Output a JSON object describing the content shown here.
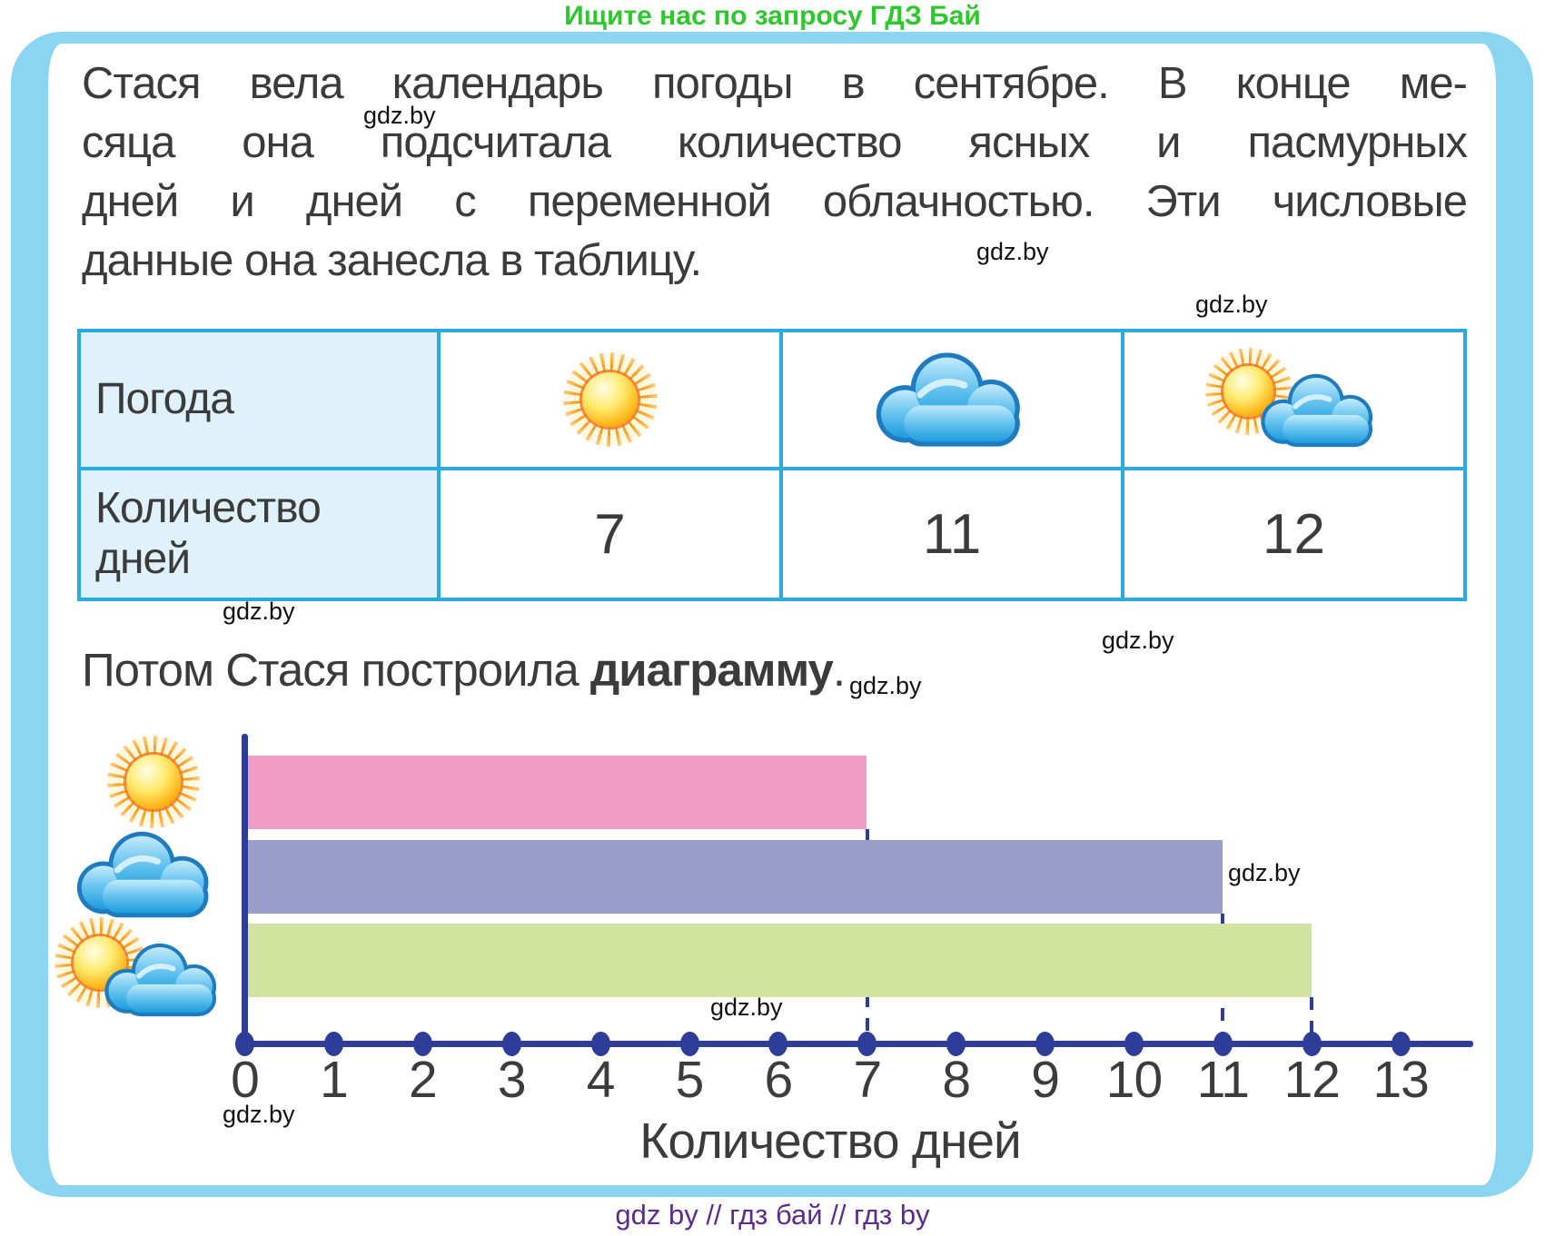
{
  "header": {
    "promo": "Ищите нас по запросу ГДЗ Бай"
  },
  "problem": {
    "lines": [
      "Стася вела календарь погоды в сентябре. В конце ме-",
      "сяца она подсчитала количество ясных и пасмурных",
      "дней и дней с переменной облачностью. Эти числовые",
      "данные она занесла в таблицу."
    ]
  },
  "table": {
    "row1_header": "Погода",
    "row2_header": "Количество дней",
    "columns": [
      {
        "icon": "sunny-icon",
        "label": "ясно",
        "value": "7"
      },
      {
        "icon": "cloudy-icon",
        "label": "пасмурно",
        "value": "11"
      },
      {
        "icon": "partly-cloudy-icon",
        "label": "переменная облачность",
        "value": "12"
      }
    ]
  },
  "subtitle": {
    "prefix": "Потом Стася построила ",
    "bold": "диаграмму",
    "suffix": "."
  },
  "chart_data": {
    "type": "bar",
    "orientation": "horizontal",
    "title": "",
    "categories": [
      "ясные дни (солнце)",
      "пасмурные дни (облако)",
      "переменная облачность (солнце и облако)"
    ],
    "category_icons": [
      "sunny-icon",
      "cloudy-icon",
      "partly-cloudy-icon"
    ],
    "values": [
      7,
      11,
      12
    ],
    "bar_colors": [
      "#F19DC3",
      "#9B9DCB",
      "#D1E39E"
    ],
    "x_ticks": [
      0,
      1,
      2,
      3,
      4,
      5,
      6,
      7,
      8,
      9,
      10,
      11,
      12,
      13
    ],
    "xlim": [
      0,
      13
    ],
    "xlabel": "Количество дней",
    "axis_color": "#2E3D98",
    "dashed_guides": [
      7,
      11,
      12
    ],
    "grid": false,
    "legend": false
  },
  "watermark": {
    "text": "gdz.by"
  },
  "footer": {
    "text": "gdz by  //  гдз бай  //  гдз by"
  },
  "colors": {
    "frame_border": "#8AD5F2",
    "table_border": "#29ABE2",
    "table_header_bg": "#DFF2FC",
    "promo_green": "#2EC82E",
    "footer_purple": "#5B2B8F",
    "text": "#3B3B3B",
    "axis_navy": "#2E3D98",
    "bar_pink": "#F19DC3",
    "bar_purple": "#9B9DCB",
    "bar_green": "#D1E39E"
  }
}
